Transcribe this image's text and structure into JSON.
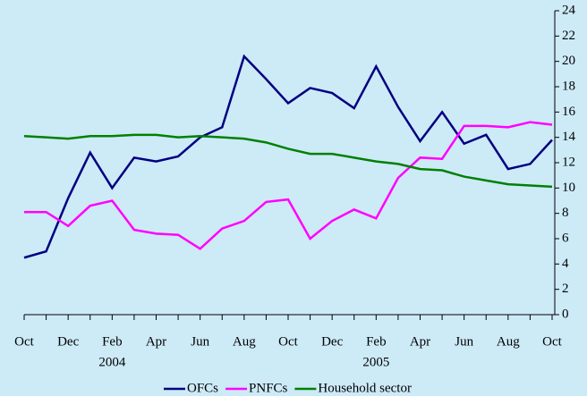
{
  "chart_data": {
    "type": "line",
    "categories": [
      "Oct",
      null,
      "Dec",
      null,
      "Feb",
      null,
      "Apr",
      null,
      "Jun",
      null,
      "Aug",
      null,
      "Oct",
      null,
      "Dec",
      null,
      "Feb",
      null,
      "Apr",
      null,
      "Jun",
      null,
      "Aug",
      null,
      "Oct"
    ],
    "years": [
      null,
      null,
      null,
      null,
      "2004",
      null,
      null,
      null,
      null,
      null,
      null,
      null,
      null,
      null,
      null,
      null,
      "2005",
      null,
      null,
      null,
      null,
      null,
      null,
      null,
      null
    ],
    "series": [
      {
        "name": "OFCs",
        "color": "#000080",
        "values": [
          4.5,
          5.0,
          9.2,
          12.8,
          10.0,
          12.4,
          12.1,
          12.5,
          14.0,
          14.8,
          20.4,
          18.6,
          16.7,
          17.9,
          17.5,
          16.3,
          19.6,
          16.4,
          13.7,
          16.0,
          13.5,
          14.2,
          11.5,
          11.9,
          13.8
        ]
      },
      {
        "name": "PNFCs",
        "color": "#ff00ff",
        "values": [
          8.1,
          8.1,
          7.0,
          8.6,
          9.0,
          6.7,
          6.4,
          6.3,
          5.2,
          6.8,
          7.4,
          8.9,
          9.1,
          6.0,
          7.4,
          8.3,
          7.6,
          10.8,
          12.4,
          12.3,
          14.9,
          14.9,
          14.8,
          15.2,
          15.0
        ]
      },
      {
        "name": "Household sector",
        "color": "#008000",
        "values": [
          14.1,
          14.0,
          13.9,
          14.1,
          14.1,
          14.2,
          14.2,
          14.0,
          14.1,
          14.0,
          13.9,
          13.6,
          13.1,
          12.7,
          12.7,
          12.4,
          12.1,
          11.9,
          11.5,
          11.4,
          10.9,
          10.6,
          10.3,
          10.2,
          10.1
        ]
      }
    ],
    "ylim": [
      0,
      24
    ],
    "yticks": [
      0,
      2,
      4,
      6,
      8,
      10,
      12,
      14,
      16,
      18,
      20,
      22,
      24
    ],
    "y_axis_side": "right",
    "grid": false,
    "legend": "bottom"
  }
}
